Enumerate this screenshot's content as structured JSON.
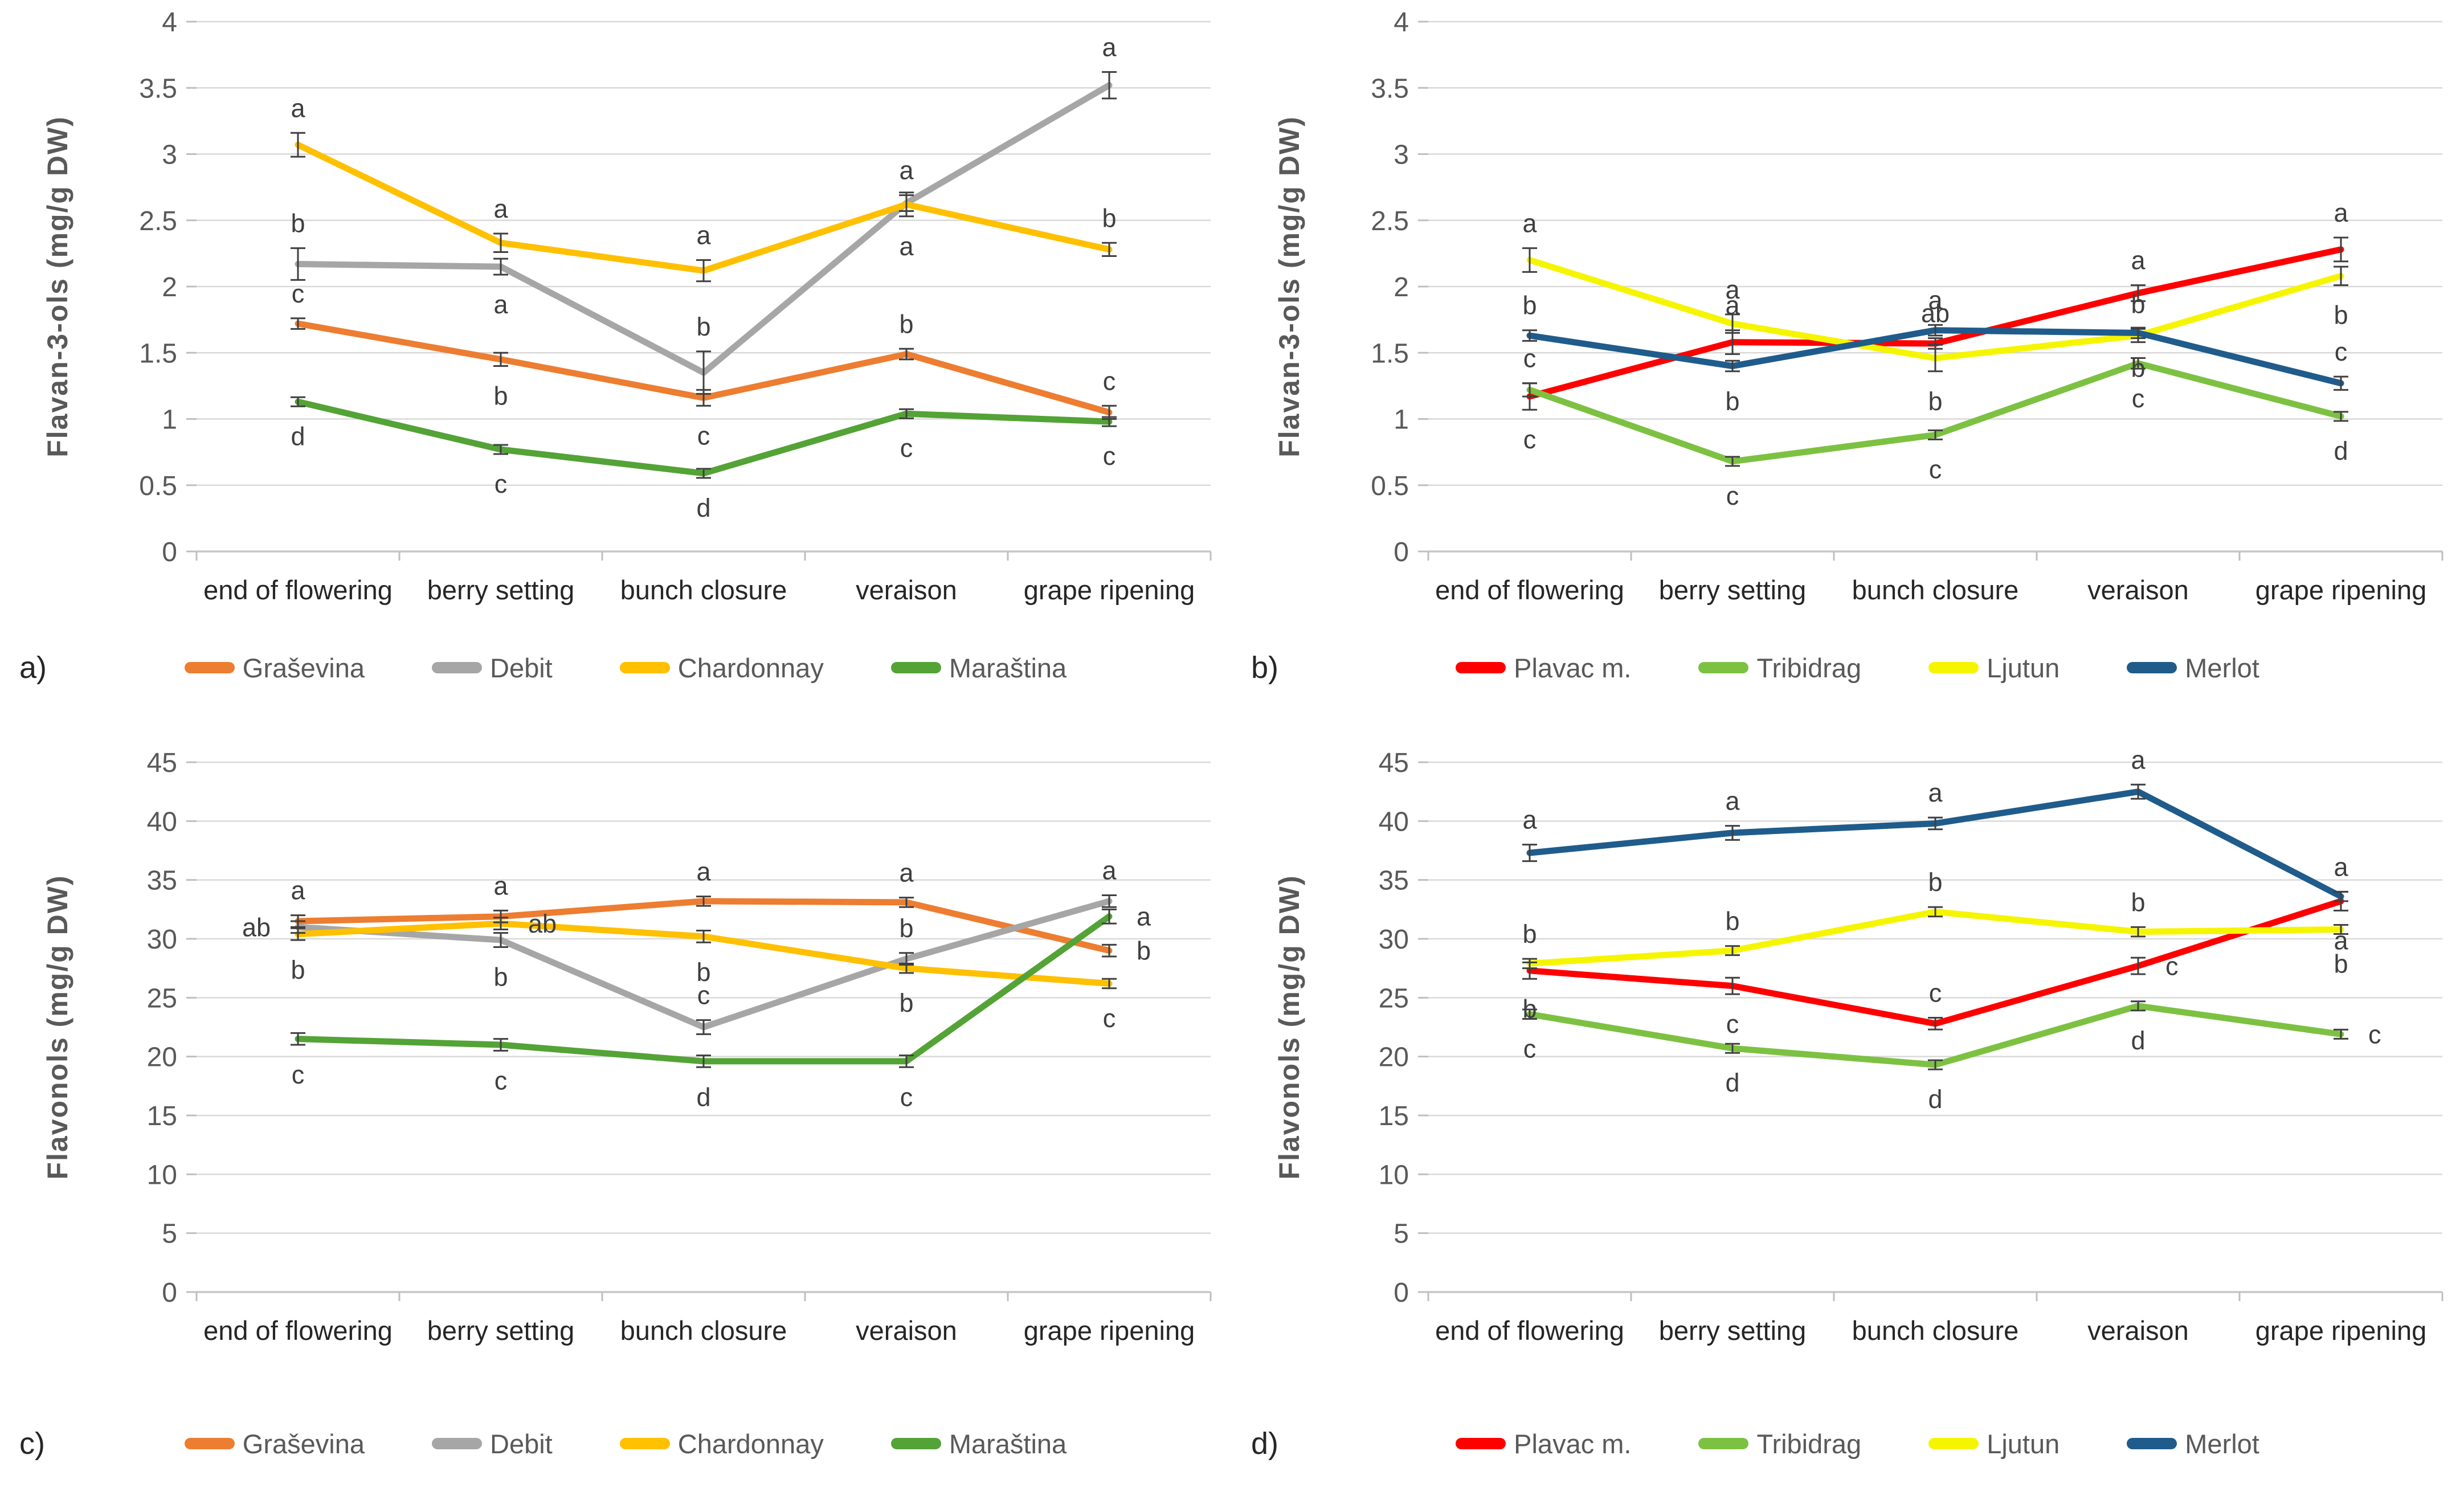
{
  "figure": {
    "background": "#FFFFFF"
  },
  "styles": {
    "grid_color": "#D9D9D9",
    "axis_color": "#C6C6C6",
    "tick_stub_color": "#BFBFBF",
    "tick_label_color": "#595959",
    "axis_title_color": "#595959",
    "xlabel_color": "#262626",
    "letter_color": "#3F3F3F",
    "error_bar_color": "#3F3F3F"
  },
  "chart_data": [
    {
      "type": "line",
      "panel_label": "a)",
      "title": "",
      "xlabel": "",
      "ylabel": "Flavan-3-ols (mg/g DW)",
      "ylim": [
        0,
        4
      ],
      "ytick_step": 0.5,
      "grid": true,
      "legend_position": "bottom",
      "categories": [
        "end of flowering",
        "berry setting",
        "bunch closure",
        "veraison",
        "grape ripening"
      ],
      "series": [
        {
          "name": "Graševina",
          "color": "#ED7D31",
          "values": [
            1.72,
            1.45,
            1.16,
            1.49,
            1.05
          ],
          "errors": [
            0.04,
            0.05,
            0.06,
            0.04,
            0.05
          ],
          "letters": [
            "c",
            "b",
            "c",
            "b",
            "c"
          ],
          "letter_side": [
            "above",
            "below",
            "below",
            "above",
            "above"
          ]
        },
        {
          "name": "Debit",
          "color": "#A6A6A6",
          "values": [
            2.17,
            2.15,
            1.35,
            2.63,
            3.52
          ],
          "errors": [
            0.12,
            0.06,
            0.16,
            0.06,
            0.1
          ],
          "letters": [
            "b",
            "a",
            "b",
            "a",
            "a"
          ],
          "letter_side": [
            "above",
            "below",
            "above",
            "above",
            "above"
          ]
        },
        {
          "name": "Chardonnay",
          "color": "#FFC000",
          "values": [
            3.07,
            2.33,
            2.12,
            2.62,
            2.28
          ],
          "errors": [
            0.09,
            0.07,
            0.08,
            0.09,
            0.05
          ],
          "letters": [
            "a",
            "a",
            "a",
            "a",
            "b"
          ],
          "letter_side": [
            "above",
            "above",
            "above",
            "below",
            "above"
          ]
        },
        {
          "name": "Maraština",
          "color": "#53A336",
          "values": [
            1.13,
            0.77,
            0.59,
            1.04,
            0.98
          ],
          "errors": [
            0.03,
            0.03,
            0.03,
            0.03,
            0.03
          ],
          "letters": [
            "d",
            "c",
            "d",
            "c",
            "c"
          ],
          "letter_side": [
            "below",
            "below",
            "below",
            "below",
            "below"
          ]
        }
      ]
    },
    {
      "type": "line",
      "panel_label": "b)",
      "title": "",
      "xlabel": "",
      "ylabel": "Flavan-3-ols (mg/g DW)",
      "ylim": [
        0,
        4
      ],
      "ytick_step": 0.5,
      "grid": true,
      "legend_position": "bottom",
      "categories": [
        "end of flowering",
        "berry setting",
        "bunch closure",
        "veraison",
        "grape ripening"
      ],
      "series": [
        {
          "name": "Plavac m.",
          "color": "#FF0000",
          "values": [
            1.17,
            1.58,
            1.57,
            1.95,
            2.28
          ],
          "errors": [
            0.1,
            0.09,
            0.04,
            0.06,
            0.09
          ],
          "letters": [
            "c",
            "a",
            "ab",
            "a",
            "a"
          ],
          "letter_side": [
            "below",
            "above",
            "above",
            "above",
            "above"
          ]
        },
        {
          "name": "Tribidrag",
          "color": "#7DC142",
          "values": [
            1.22,
            0.68,
            0.88,
            1.42,
            1.02
          ],
          "errors": [
            0.05,
            0.03,
            0.03,
            0.04,
            0.03
          ],
          "letters": [
            "c",
            "c",
            "c",
            "c",
            "d"
          ],
          "letter_side": [
            "above",
            "below",
            "below",
            "below",
            "below"
          ]
        },
        {
          "name": "Ljutun",
          "color": "#F5F500",
          "values": [
            2.2,
            1.72,
            1.46,
            1.63,
            2.08
          ],
          "errors": [
            0.09,
            0.07,
            0.1,
            0.05,
            0.07
          ],
          "letters": [
            "a",
            "a",
            "b",
            "b",
            "b"
          ],
          "letter_side": [
            "above",
            "above",
            "below",
            "above",
            "below"
          ]
        },
        {
          "name": "Merlot",
          "color": "#1F5C8B",
          "values": [
            1.63,
            1.4,
            1.67,
            1.65,
            1.27
          ],
          "errors": [
            0.04,
            0.04,
            0.04,
            0.04,
            0.05
          ],
          "letters": [
            "b",
            "b",
            "a",
            "b",
            "c"
          ],
          "letter_side": [
            "above",
            "below",
            "above",
            "below",
            "above"
          ]
        }
      ]
    },
    {
      "type": "line",
      "panel_label": "c)",
      "title": "",
      "xlabel": "",
      "ylabel": "Flavonols (mg/g DW)",
      "ylim": [
        0,
        45
      ],
      "ytick_step": 5,
      "grid": true,
      "legend_position": "bottom",
      "categories": [
        "end of flowering",
        "berry setting",
        "bunch closure",
        "veraison",
        "grape ripening"
      ],
      "series": [
        {
          "name": "Graševina",
          "color": "#ED7D31",
          "values": [
            31.5,
            31.9,
            33.2,
            33.1,
            29.0
          ],
          "errors": [
            0.5,
            0.5,
            0.4,
            0.4,
            0.5
          ],
          "letters": [
            "a",
            "a",
            "a",
            "a",
            "b"
          ],
          "letter_side": [
            "above",
            "above",
            "above",
            "above",
            "right"
          ]
        },
        {
          "name": "Debit",
          "color": "#A6A6A6",
          "values": [
            31.0,
            29.9,
            22.5,
            28.3,
            33.2
          ],
          "errors": [
            0.5,
            0.6,
            0.6,
            0.5,
            0.5
          ],
          "letters": [
            "ab",
            "b",
            "c",
            "b",
            "a"
          ],
          "letter_side": [
            "left",
            "below",
            "above",
            "above",
            "above"
          ]
        },
        {
          "name": "Chardonnay",
          "color": "#FFC000",
          "values": [
            30.4,
            31.3,
            30.2,
            27.5,
            26.2
          ],
          "errors": [
            0.5,
            0.5,
            0.5,
            0.4,
            0.4
          ],
          "letters": [
            "b",
            "ab",
            "b",
            "b",
            "c"
          ],
          "letter_side": [
            "below",
            "right",
            "below",
            "below",
            "below"
          ]
        },
        {
          "name": "Maraština",
          "color": "#53A336",
          "values": [
            21.5,
            21.0,
            19.6,
            19.6,
            31.9
          ],
          "errors": [
            0.5,
            0.5,
            0.5,
            0.5,
            0.6
          ],
          "letters": [
            "c",
            "c",
            "d",
            "c",
            "a"
          ],
          "letter_side": [
            "below",
            "below",
            "below",
            "below",
            "right"
          ]
        }
      ]
    },
    {
      "type": "line",
      "panel_label": "d)",
      "title": "",
      "xlabel": "",
      "ylabel": "Flavonols (mg/g DW)",
      "ylim": [
        0,
        45
      ],
      "ytick_step": 5,
      "grid": true,
      "legend_position": "bottom",
      "categories": [
        "end of flowering",
        "berry setting",
        "bunch closure",
        "veraison",
        "grape ripening"
      ],
      "series": [
        {
          "name": "Plavac m.",
          "color": "#FF0000",
          "values": [
            27.3,
            26.0,
            22.8,
            27.7,
            33.2
          ],
          "errors": [
            0.7,
            0.7,
            0.5,
            0.7,
            0.8
          ],
          "letters": [
            "b",
            "c",
            "c",
            "c",
            "a"
          ],
          "letter_side": [
            "below",
            "below",
            "above",
            "right",
            "below"
          ]
        },
        {
          "name": "Tribidrag",
          "color": "#7DC142",
          "values": [
            23.6,
            20.7,
            19.3,
            24.3,
            21.9
          ],
          "errors": [
            0.4,
            0.3,
            0.3,
            0.3,
            0.3
          ],
          "letters": [
            "c",
            "d",
            "d",
            "d",
            "c"
          ],
          "letter_side": [
            "below",
            "below",
            "below",
            "below",
            "right"
          ]
        },
        {
          "name": "Ljutun",
          "color": "#F5F500",
          "values": [
            27.9,
            29.0,
            32.3,
            30.6,
            30.8
          ],
          "errors": [
            0.4,
            0.3,
            0.4,
            0.4,
            0.3
          ],
          "letters": [
            "b",
            "b",
            "b",
            "b",
            "b"
          ],
          "letter_side": [
            "above",
            "above",
            "above",
            "above",
            "below"
          ]
        },
        {
          "name": "Merlot",
          "color": "#1F5C8B",
          "values": [
            37.3,
            39.0,
            39.8,
            42.5,
            33.6
          ],
          "errors": [
            0.7,
            0.6,
            0.5,
            0.6,
            0.4
          ],
          "letters": [
            "a",
            "a",
            "a",
            "a",
            "a"
          ],
          "letter_side": [
            "above",
            "above",
            "above",
            "above",
            "above"
          ]
        }
      ]
    }
  ]
}
